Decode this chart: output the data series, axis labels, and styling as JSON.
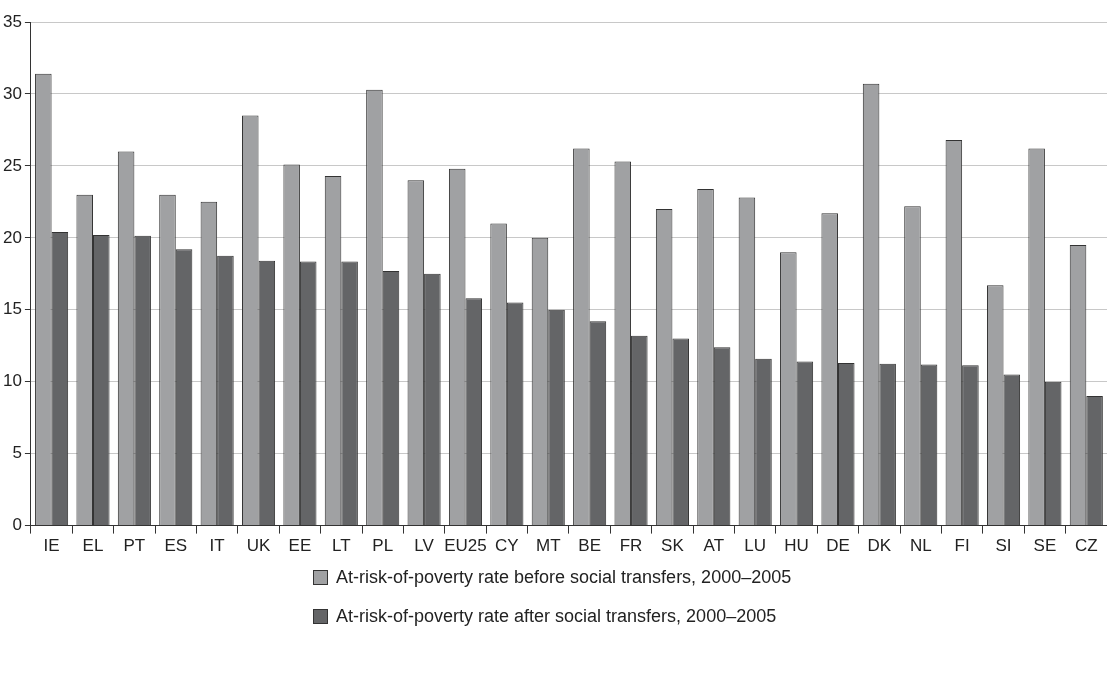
{
  "chart_data": {
    "type": "bar",
    "categories": [
      "IE",
      "EL",
      "PT",
      "ES",
      "IT",
      "UK",
      "EE",
      "LT",
      "PL",
      "LV",
      "EU25",
      "CY",
      "MT",
      "BE",
      "FR",
      "SK",
      "AT",
      "LU",
      "HU",
      "DE",
      "DK",
      "NL",
      "FI",
      "SI",
      "SE",
      "CZ"
    ],
    "series": [
      {
        "name": "At-risk-of-poverty rate before social transfers, 2000–2005",
        "color": "#a0a1a3",
        "values": [
          31.4,
          23,
          26,
          23,
          22.5,
          28.5,
          25.1,
          24.3,
          30.3,
          24,
          24.8,
          21,
          20,
          26.2,
          25.3,
          22,
          23.4,
          22.8,
          19,
          21.7,
          30.7,
          22.2,
          26.8,
          16.7,
          26.2,
          19.5
        ]
      },
      {
        "name": "At-risk-of-poverty rate after social transfers, 2000–2005",
        "color": "#646567",
        "values": [
          20.4,
          20.2,
          20.15,
          19.2,
          18.75,
          18.4,
          18.35,
          18.35,
          17.7,
          17.5,
          15.8,
          15.5,
          15,
          14.2,
          13.2,
          13,
          12.4,
          11.6,
          11.4,
          11.3,
          11.25,
          11.2,
          11.15,
          10.5,
          10,
          9
        ]
      }
    ],
    "ylim": [
      0,
      35
    ],
    "yticks": [
      0,
      5,
      10,
      15,
      20,
      25,
      30,
      35
    ],
    "grid": "y",
    "legend": "bottom"
  }
}
